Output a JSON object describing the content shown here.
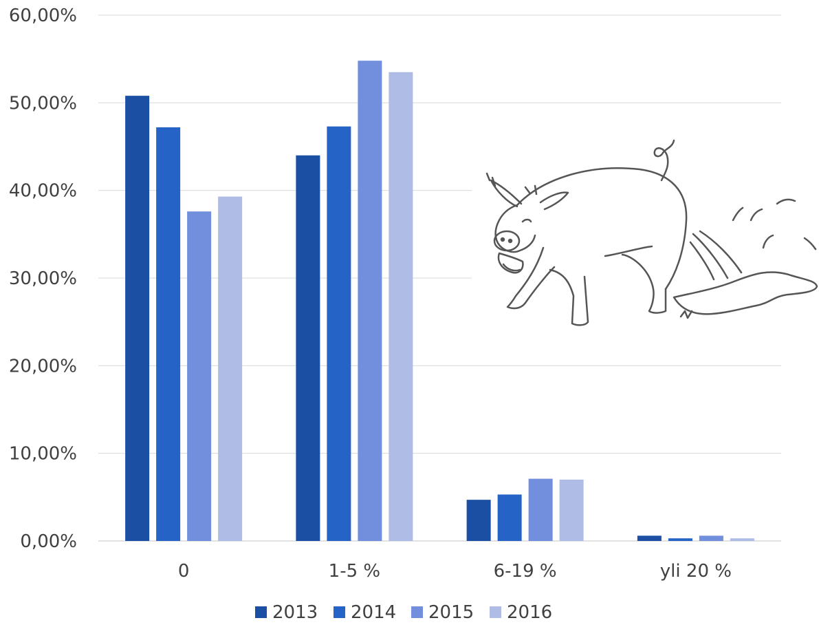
{
  "chart_data": {
    "type": "bar",
    "categories": [
      "0",
      "1-5 %",
      "6-19 %",
      "yli 20 %"
    ],
    "series": [
      {
        "name": "2013",
        "color": "#1b4fa3",
        "values": [
          50.8,
          44.0,
          4.7,
          0.6
        ]
      },
      {
        "name": "2014",
        "color": "#2563c6",
        "values": [
          47.2,
          47.3,
          5.3,
          0.3
        ]
      },
      {
        "name": "2015",
        "color": "#718fdc",
        "values": [
          37.6,
          54.8,
          7.1,
          0.6
        ]
      },
      {
        "name": "2016",
        "color": "#afbde6",
        "values": [
          39.3,
          53.5,
          7.0,
          0.3
        ]
      }
    ],
    "yticks": [
      "0,00%",
      "10,00%",
      "20,00%",
      "30,00%",
      "40,00%",
      "50,00%",
      "60,00%"
    ],
    "ylim": [
      0,
      60
    ],
    "grid": true,
    "legend_position": "bottom",
    "gridline_color": "#d9d9d9",
    "illustration": "pig-drawing"
  }
}
